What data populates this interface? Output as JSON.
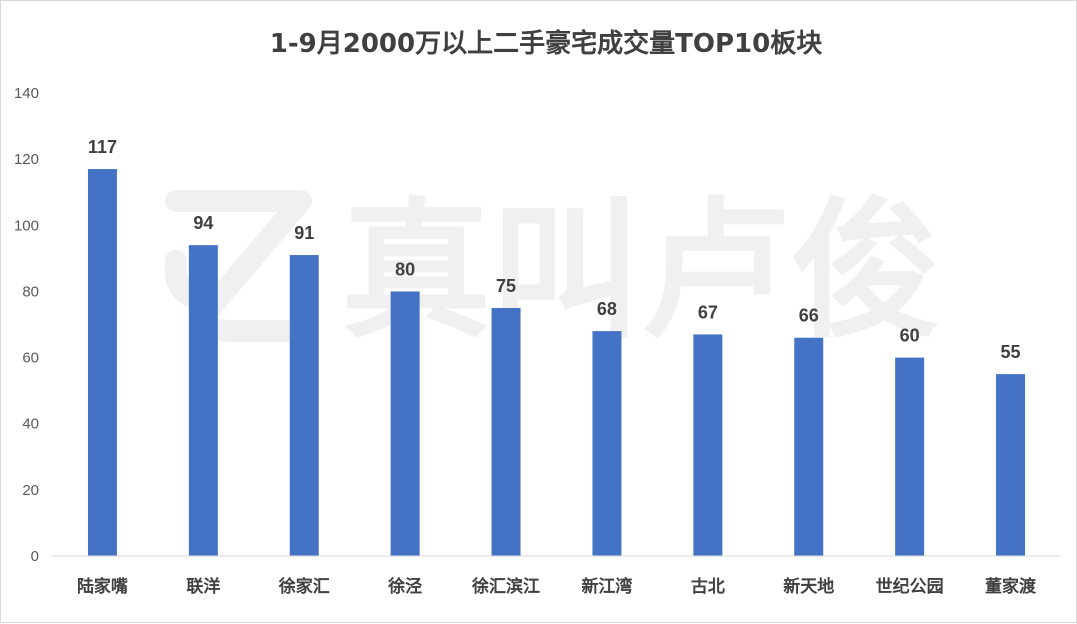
{
  "chart_data": {
    "type": "bar",
    "title": "1-9月2000万以上二手豪宅成交量TOP10板块",
    "categories": [
      "陆家嘴",
      "联洋",
      "徐家汇",
      "徐泾",
      "徐汇滨江",
      "新江湾",
      "古北",
      "新天地",
      "世纪公园",
      "董家渡"
    ],
    "values": [
      117,
      94,
      91,
      80,
      75,
      68,
      67,
      66,
      60,
      55
    ],
    "ylim": [
      0,
      140
    ],
    "yticks": [
      0,
      20,
      40,
      60,
      80,
      100,
      120,
      140
    ],
    "xlabel": "",
    "ylabel": "",
    "grid": false,
    "bar_color": "#4472c4",
    "data_labels": true
  },
  "watermark": {
    "text": "真叫卢俊"
  }
}
